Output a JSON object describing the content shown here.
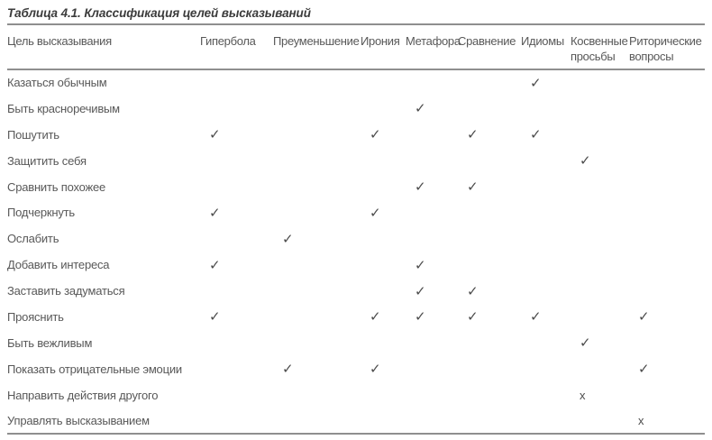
{
  "page": {
    "title": "Таблица 4.1. Классификация целей высказываний"
  },
  "marks": {
    "check_glyph": "✓",
    "x_glyph": "x"
  },
  "colors": {
    "text_gray": "#585858",
    "title_gray": "#3c3c3c",
    "rule_gray": "#8f8f8f",
    "mark_gray": "#4c4c4c",
    "background": "#ffffff"
  },
  "table": {
    "header": [
      "Цель высказывания",
      "Гипербола",
      "Преуменьшение",
      "Ирония",
      "Метафора",
      "Сравнение",
      "Идиомы",
      "Косвенные просьбы",
      "Риторические вопросы"
    ],
    "rows": [
      {
        "label": "Казаться обычным",
        "cells": [
          "",
          "",
          "",
          "",
          "",
          "check",
          "",
          ""
        ]
      },
      {
        "label": "Быть красноречивым",
        "cells": [
          "",
          "",
          "",
          "check",
          "",
          "",
          "",
          ""
        ]
      },
      {
        "label": "Пошутить",
        "cells": [
          "check",
          "",
          "check",
          "",
          "check",
          "check",
          "",
          ""
        ]
      },
      {
        "label": "Защитить себя",
        "cells": [
          "",
          "",
          "",
          "",
          "",
          "",
          "check",
          ""
        ]
      },
      {
        "label": "Сравнить похожее",
        "cells": [
          "",
          "",
          "",
          "check",
          "check",
          "",
          "",
          ""
        ]
      },
      {
        "label": "Подчеркнуть",
        "cells": [
          "check",
          "",
          "check",
          "",
          "",
          "",
          "",
          ""
        ]
      },
      {
        "label": "Ослабить",
        "cells": [
          "",
          "check",
          "",
          "",
          "",
          "",
          "",
          ""
        ]
      },
      {
        "label": "Добавить интереса",
        "cells": [
          "check",
          "",
          "",
          "check",
          "",
          "",
          "",
          ""
        ]
      },
      {
        "label": "Заставить задуматься",
        "cells": [
          "",
          "",
          "",
          "check",
          "check",
          "",
          "",
          ""
        ]
      },
      {
        "label": "Прояснить",
        "cells": [
          "check",
          "",
          "check",
          "check",
          "check",
          "check",
          "",
          "check"
        ]
      },
      {
        "label": "Быть вежливым",
        "cells": [
          "",
          "",
          "",
          "",
          "",
          "",
          "check",
          ""
        ]
      },
      {
        "label": "Показать отрицательные эмоции",
        "cells": [
          "",
          "check",
          "check",
          "",
          "",
          "",
          "",
          "check"
        ]
      },
      {
        "label": "Направить действия другого",
        "cells": [
          "",
          "",
          "",
          "",
          "",
          "",
          "x",
          ""
        ]
      },
      {
        "label": "Управлять высказыванием",
        "cells": [
          "",
          "",
          "",
          "",
          "",
          "",
          "",
          "x"
        ]
      }
    ]
  }
}
